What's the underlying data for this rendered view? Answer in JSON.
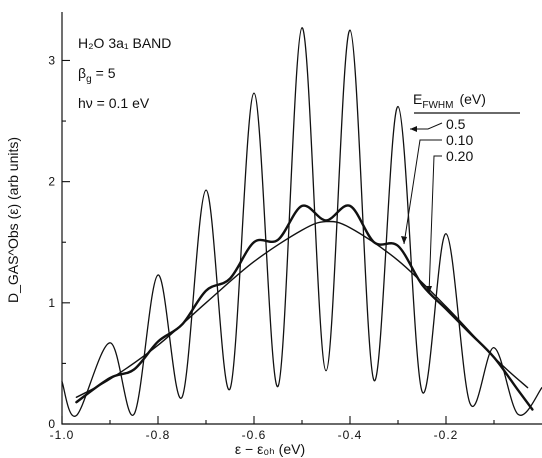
{
  "chart_data": {
    "type": "line",
    "title": "",
    "xlabel": "ε − ε₀ₕ (eV)",
    "ylabel": "D_GAS^Obs (ε) (arb units)",
    "xlim": [
      -1.0,
      0.0
    ],
    "ylim": [
      0,
      3.4
    ],
    "x_tick_labels": [
      "-1.0",
      "-0.8",
      "-0.6",
      "-0.4",
      "-0.2"
    ],
    "x_tick_values": [
      -1.0,
      -0.8,
      -0.6,
      -0.4,
      -0.2
    ],
    "y_tick_labels": [
      "0",
      "1",
      "2",
      "3"
    ],
    "y_tick_values": [
      0,
      1,
      2,
      3
    ],
    "annotations": {
      "molecule": "H₂O  3a₁ BAND",
      "beta": "β",
      "beta_sub": "g",
      "beta_value": "= 5",
      "photon": "hν = 0.1 eV",
      "legend_title": "E",
      "legend_title_sub": "FWHM",
      "legend_title_unit": "(eV)"
    },
    "series": [
      {
        "name": "0.5",
        "x": [
          -0.97,
          -0.9,
          -0.8,
          -0.7,
          -0.6,
          -0.5,
          -0.45,
          -0.4,
          -0.3,
          -0.2,
          -0.1,
          -0.03
        ],
        "y": [
          0.22,
          0.37,
          0.65,
          1.0,
          1.34,
          1.6,
          1.67,
          1.62,
          1.35,
          0.97,
          0.55,
          0.3
        ]
      },
      {
        "name": "0.10",
        "x": [
          -1.0,
          -0.97,
          -0.9,
          -0.85,
          -0.8,
          -0.75,
          -0.7,
          -0.65,
          -0.6,
          -0.55,
          -0.5,
          -0.45,
          -0.4,
          -0.35,
          -0.3,
          -0.25,
          -0.2,
          -0.15,
          -0.1,
          -0.05,
          0.0
        ],
        "y": [
          0.35,
          0.07,
          0.67,
          0.08,
          1.23,
          0.22,
          1.93,
          0.29,
          2.73,
          0.31,
          3.27,
          0.44,
          3.25,
          0.36,
          2.62,
          0.27,
          1.57,
          0.17,
          0.63,
          0.08,
          0.3
        ]
      },
      {
        "name": "0.20",
        "x": [
          -0.97,
          -0.9,
          -0.85,
          -0.8,
          -0.75,
          -0.7,
          -0.65,
          -0.6,
          -0.55,
          -0.5,
          -0.45,
          -0.4,
          -0.35,
          -0.3,
          -0.25,
          -0.2,
          -0.15,
          -0.1,
          -0.05,
          -0.02
        ],
        "y": [
          0.18,
          0.38,
          0.45,
          0.68,
          0.82,
          1.1,
          1.2,
          1.5,
          1.52,
          1.8,
          1.68,
          1.8,
          1.5,
          1.47,
          1.15,
          0.95,
          0.75,
          0.55,
          0.28,
          0.12
        ]
      }
    ],
    "grid": false,
    "legend_position": "top-right"
  }
}
